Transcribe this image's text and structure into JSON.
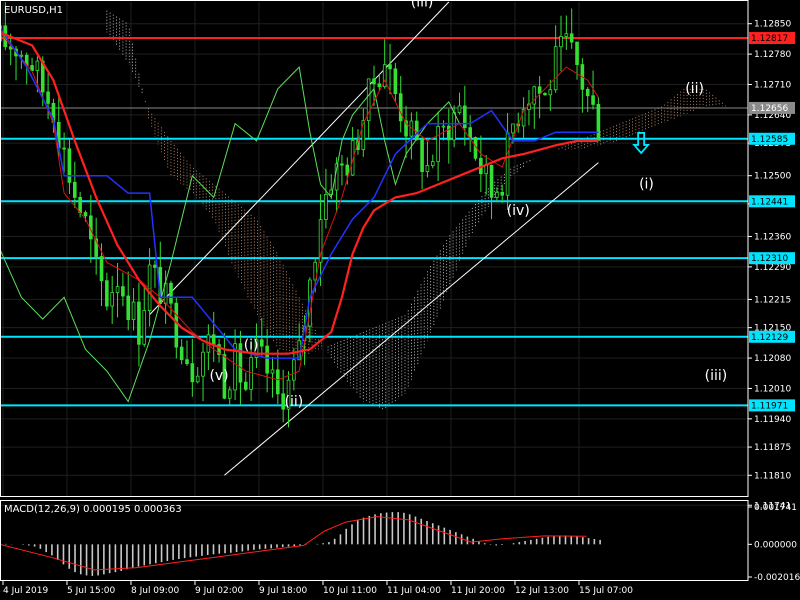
{
  "symbol": "EURUSD,H1",
  "colors": {
    "background": "#000000",
    "grid": "#1f1f1f",
    "axis": "#ffffff",
    "candle": "#33e033",
    "support": "#00e5ff",
    "resistance": "#ff2020",
    "current": "#8a8a8a",
    "ma": "#ff2020",
    "kijun": "#2233ff",
    "tenkan": "#dd1111",
    "chikou": "#5ce05c",
    "cloud_bear": "#ffffff",
    "cloud_bull": "#ffb48a",
    "channel": "#ffffff",
    "macd_hist": "#c8c8c8",
    "macd_signal": "#ff2020"
  },
  "chart_data": [
    {
      "type": "candlestick",
      "title": "EURUSD,H1",
      "ylim": [
        1.1176,
        1.129
      ],
      "y_ticks": [
        "1.12850",
        "1.12780",
        "1.12710",
        "1.12640",
        "1.12575",
        "1.12500",
        "1.12435",
        "1.12360",
        "1.12290",
        "1.12215",
        "1.12150",
        "1.12080",
        "1.12010",
        "1.11940",
        "1.11875",
        "1.11810",
        "1.11741"
      ],
      "x_labels": [
        "4 Jul 2019",
        "5 Jul 15:00",
        "8 Jul 09:00",
        "9 Jul 02:00",
        "9 Jul 18:00",
        "10 Jul 11:00",
        "11 Jul 04:00",
        "11 Jul 20:00",
        "12 Jul 13:00",
        "15 Jul 07:00"
      ],
      "levels": [
        {
          "value": 1.12817,
          "label": "1.12817",
          "kind": "resistance"
        },
        {
          "value": 1.12656,
          "label": "1.12656",
          "kind": "current"
        },
        {
          "value": 1.12585,
          "label": "1.12585",
          "kind": "support"
        },
        {
          "value": 1.12441,
          "label": "1.12441",
          "kind": "support"
        },
        {
          "value": 1.1231,
          "label": "1.12310",
          "kind": "support"
        },
        {
          "value": 1.12129,
          "label": "1.12129",
          "kind": "support"
        },
        {
          "value": 1.11971,
          "label": "1.11971",
          "kind": "support"
        }
      ],
      "close_path": [
        [
          0,
          1.1281
        ],
        [
          3,
          1.128
        ],
        [
          6,
          1.1276
        ],
        [
          8,
          1.127
        ],
        [
          10,
          1.1266
        ],
        [
          12,
          1.1255
        ],
        [
          14,
          1.1246
        ],
        [
          16,
          1.1239
        ],
        [
          18,
          1.1228
        ],
        [
          20,
          1.1222
        ],
        [
          22,
          1.1227
        ],
        [
          24,
          1.1221
        ],
        [
          26,
          1.1215
        ],
        [
          28,
          1.1228
        ],
        [
          30,
          1.1224
        ],
        [
          32,
          1.1218
        ],
        [
          34,
          1.1212
        ],
        [
          36,
          1.1206
        ],
        [
          38,
          1.121
        ],
        [
          40,
          1.1213
        ],
        [
          42,
          1.1203
        ],
        [
          44,
          1.1207
        ],
        [
          46,
          1.1201
        ],
        [
          48,
          1.1209
        ],
        [
          50,
          1.1205
        ],
        [
          52,
          1.1199
        ],
        [
          54,
          1.1202
        ],
        [
          56,
          1.1209
        ],
        [
          58,
          1.1225
        ],
        [
          60,
          1.1242
        ],
        [
          62,
          1.125
        ],
        [
          64,
          1.1252
        ],
        [
          66,
          1.1255
        ],
        [
          68,
          1.1264
        ],
        [
          70,
          1.1272
        ],
        [
          72,
          1.1277
        ],
        [
          74,
          1.1269
        ],
        [
          76,
          1.1262
        ],
        [
          78,
          1.1256
        ],
        [
          80,
          1.1252
        ],
        [
          82,
          1.1258
        ],
        [
          84,
          1.1262
        ],
        [
          86,
          1.1266
        ],
        [
          88,
          1.1259
        ],
        [
          90,
          1.1252
        ],
        [
          92,
          1.1246
        ],
        [
          94,
          1.125
        ],
        [
          96,
          1.1262
        ],
        [
          98,
          1.1268
        ],
        [
          100,
          1.1271
        ],
        [
          102,
          1.1268
        ],
        [
          104,
          1.1276
        ],
        [
          106,
          1.128
        ],
        [
          108,
          1.1275
        ],
        [
          110,
          1.1268
        ],
        [
          112,
          1.1262
        ]
      ],
      "ma_path": [
        [
          0,
          1.1283
        ],
        [
          6,
          1.128
        ],
        [
          10,
          1.1272
        ],
        [
          14,
          1.1258
        ],
        [
          18,
          1.1245
        ],
        [
          22,
          1.1234
        ],
        [
          26,
          1.1226
        ],
        [
          30,
          1.122
        ],
        [
          34,
          1.1215
        ],
        [
          38,
          1.1212
        ],
        [
          42,
          1.121
        ],
        [
          48,
          1.1209
        ],
        [
          54,
          1.1209
        ],
        [
          58,
          1.121
        ],
        [
          62,
          1.1214
        ],
        [
          64,
          1.1222
        ],
        [
          66,
          1.1232
        ],
        [
          68,
          1.1238
        ],
        [
          70,
          1.1242
        ],
        [
          74,
          1.1245
        ],
        [
          78,
          1.1246
        ],
        [
          82,
          1.1248
        ],
        [
          86,
          1.125
        ],
        [
          90,
          1.1252
        ],
        [
          94,
          1.1254
        ],
        [
          98,
          1.1255
        ],
        [
          104,
          1.1257
        ],
        [
          108,
          1.1258
        ],
        [
          112,
          1.1258
        ]
      ],
      "kijun_path": [
        [
          0,
          1.1284
        ],
        [
          5,
          1.1275
        ],
        [
          10,
          1.1263
        ],
        [
          12,
          1.125
        ],
        [
          20,
          1.125
        ],
        [
          24,
          1.1246
        ],
        [
          28,
          1.1246
        ],
        [
          30,
          1.1222
        ],
        [
          36,
          1.1222
        ],
        [
          40,
          1.1216
        ],
        [
          44,
          1.121
        ],
        [
          50,
          1.1208
        ],
        [
          56,
          1.1208
        ],
        [
          58,
          1.1222
        ],
        [
          62,
          1.1232
        ],
        [
          66,
          1.124
        ],
        [
          70,
          1.1245
        ],
        [
          74,
          1.1255
        ],
        [
          80,
          1.1262
        ],
        [
          88,
          1.1262
        ],
        [
          92,
          1.1265
        ],
        [
          96,
          1.1258
        ],
        [
          100,
          1.1258
        ],
        [
          104,
          1.126
        ],
        [
          112,
          1.126
        ]
      ],
      "tenkan_path": [
        [
          0,
          1.1283
        ],
        [
          6,
          1.1274
        ],
        [
          10,
          1.1262
        ],
        [
          12,
          1.1246
        ],
        [
          16,
          1.124
        ],
        [
          20,
          1.123
        ],
        [
          26,
          1.1226
        ],
        [
          30,
          1.1222
        ],
        [
          36,
          1.1214
        ],
        [
          40,
          1.121
        ],
        [
          46,
          1.1205
        ],
        [
          52,
          1.1203
        ],
        [
          56,
          1.1205
        ],
        [
          60,
          1.1232
        ],
        [
          64,
          1.1245
        ],
        [
          68,
          1.1262
        ],
        [
          72,
          1.1272
        ],
        [
          76,
          1.1262
        ],
        [
          80,
          1.1258
        ],
        [
          86,
          1.1262
        ],
        [
          90,
          1.1255
        ],
        [
          94,
          1.1252
        ],
        [
          98,
          1.1265
        ],
        [
          102,
          1.127
        ],
        [
          106,
          1.1275
        ],
        [
          110,
          1.1272
        ],
        [
          112,
          1.1268
        ]
      ],
      "chikou_path": [
        [
          0,
          1.1233
        ],
        [
          4,
          1.1222
        ],
        [
          8,
          1.1217
        ],
        [
          12,
          1.1222
        ],
        [
          16,
          1.121
        ],
        [
          20,
          1.1205
        ],
        [
          24,
          1.1198
        ],
        [
          28,
          1.1212
        ],
        [
          32,
          1.123
        ],
        [
          36,
          1.125
        ],
        [
          40,
          1.1245
        ],
        [
          44,
          1.1262
        ],
        [
          48,
          1.1258
        ],
        [
          52,
          1.127
        ],
        [
          56,
          1.1275
        ],
        [
          58,
          1.126
        ],
        [
          60,
          1.1248
        ],
        [
          62,
          1.1245
        ],
        [
          64,
          1.1258
        ],
        [
          66,
          1.1264
        ],
        [
          70,
          1.127
        ],
        [
          72,
          1.1258
        ],
        [
          74,
          1.1248
        ],
        [
          76,
          1.1255
        ],
        [
          80,
          1.1262
        ],
        [
          84,
          1.1267
        ],
        [
          86,
          1.1262
        ]
      ],
      "channel_lines": [
        [
          [
            28,
            1.1218
          ],
          [
            84,
            1.129
          ]
        ],
        [
          [
            42,
            1.1181
          ],
          [
            112,
            1.1253
          ]
        ]
      ],
      "wave_labels": [
        {
          "text": "(iii)",
          "x": 79,
          "y": 1.1289
        },
        {
          "text": "(ii)",
          "x": 130,
          "y": 1.1269
        },
        {
          "text": "(iv)",
          "x": 97,
          "y": 1.1241
        },
        {
          "text": "(i)",
          "x": 121,
          "y": 1.1247
        },
        {
          "text": "(i)",
          "x": 47,
          "y": 1.121
        },
        {
          "text": "(v)",
          "x": 41,
          "y": 1.1203
        },
        {
          "text": "(ii)",
          "x": 55,
          "y": 1.1197
        },
        {
          "text": "(iii)",
          "x": 134,
          "y": 1.1203
        }
      ],
      "arrow": {
        "x": 120,
        "y": 1.1258,
        "direction": "down"
      }
    },
    {
      "type": "bar",
      "title": "MACD(12,26,9) 0.000195 0.000363",
      "ylim": [
        -0.00165,
        0.00195
      ],
      "y_ticks": [
        "0.001741",
        "0.000000",
        "-0.002016"
      ],
      "histogram": [
        2e-05,
        2e-05,
        1e-05,
        0.0,
        -2e-05,
        -5e-05,
        -0.0001,
        -0.0002,
        -0.00035,
        -0.0005,
        -0.0007,
        -0.0009,
        -0.0011,
        -0.00125,
        -0.00135,
        -0.0014,
        -0.00142,
        -0.0014,
        -0.00135,
        -0.0013,
        -0.00125,
        -0.0012,
        -0.00112,
        -0.00105,
        -0.001,
        -0.00095,
        -0.0009,
        -0.00085,
        -0.0008,
        -0.00075,
        -0.0007,
        -0.00066,
        -0.00062,
        -0.00058,
        -0.00055,
        -0.00052,
        -0.00048,
        -0.00045,
        -0.00042,
        -0.0004,
        -0.00038,
        -0.00035,
        -0.00032,
        -0.00028,
        -0.00025,
        -0.00022,
        -0.0002,
        -0.00018,
        -0.00015,
        -0.00012,
        -0.0001,
        -8e-05,
        -5e-05,
        -2e-05,
        0.0,
        2e-05,
        5e-05,
        0.0001,
        0.00025,
        0.00045,
        0.0007,
        0.0009,
        0.0011,
        0.0012,
        0.00128,
        0.00135,
        0.0014,
        0.00143,
        0.00145,
        0.00145,
        0.00142,
        0.00135,
        0.00125,
        0.00115,
        0.00105,
        0.00095,
        0.00085,
        0.00075,
        0.00065,
        0.00055,
        0.00045,
        0.00035,
        0.00025,
        0.00015,
        5e-05,
        -2e-05,
        -5e-05,
        -3e-05,
        0.0,
        5e-05,
        0.0001,
        0.00015,
        0.0002,
        0.00025,
        0.0003,
        0.00034,
        0.00038,
        0.0004,
        0.0004,
        0.00038,
        0.00035,
        0.00032,
        0.00028,
        0.00024,
        0.0002
      ],
      "signal": [
        [
          0,
          0.0
        ],
        [
          10,
          -0.0006
        ],
        [
          18,
          -0.00115
        ],
        [
          26,
          -0.00105
        ],
        [
          34,
          -0.0008
        ],
        [
          42,
          -0.00055
        ],
        [
          50,
          -0.0003
        ],
        [
          58,
          -5e-05
        ],
        [
          62,
          0.0006
        ],
        [
          66,
          0.001
        ],
        [
          72,
          0.00125
        ],
        [
          78,
          0.0011
        ],
        [
          84,
          0.0006
        ],
        [
          90,
          0.0001
        ],
        [
          96,
          0.00025
        ],
        [
          104,
          0.00038
        ],
        [
          112,
          0.00036
        ]
      ]
    }
  ]
}
